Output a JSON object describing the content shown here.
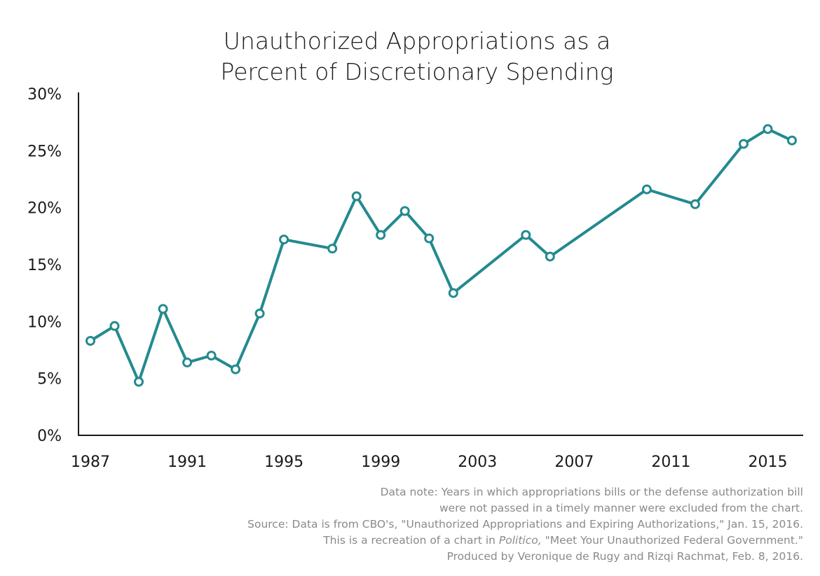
{
  "chart_data": {
    "type": "line",
    "title_lines": [
      "Unauthorized Appropriations as a",
      "Percent of Discretionary Spending"
    ],
    "ylim": [
      0,
      30
    ],
    "yticks": [
      0,
      5,
      10,
      15,
      20,
      25,
      30
    ],
    "ytick_labels": [
      "0%",
      "5%",
      "10%",
      "15%",
      "20%",
      "25%",
      "30%"
    ],
    "xlim": [
      1987,
      2016
    ],
    "xticks": [
      1987,
      1991,
      1995,
      1999,
      2003,
      2007,
      2011,
      2015
    ],
    "xtick_labels": [
      "1987",
      "1991",
      "1995",
      "1999",
      "2003",
      "2007",
      "2011",
      "2015"
    ],
    "grid": false,
    "color": "#238a8f",
    "points": [
      {
        "x": 1987,
        "y": 8.3
      },
      {
        "x": 1988,
        "y": 9.6
      },
      {
        "x": 1989,
        "y": 4.7
      },
      {
        "x": 1990,
        "y": 11.1
      },
      {
        "x": 1991,
        "y": 6.4
      },
      {
        "x": 1992,
        "y": 7.0
      },
      {
        "x": 1993,
        "y": 5.8
      },
      {
        "x": 1994,
        "y": 10.7
      },
      {
        "x": 1995,
        "y": 17.2
      },
      {
        "x": 1997,
        "y": 16.4
      },
      {
        "x": 1998,
        "y": 21.0
      },
      {
        "x": 1999,
        "y": 17.6
      },
      {
        "x": 2000,
        "y": 19.7
      },
      {
        "x": 2001,
        "y": 17.3
      },
      {
        "x": 2002,
        "y": 12.5
      },
      {
        "x": 2005,
        "y": 17.6
      },
      {
        "x": 2006,
        "y": 15.7
      },
      {
        "x": 2010,
        "y": 21.6
      },
      {
        "x": 2012,
        "y": 20.3
      },
      {
        "x": 2014,
        "y": 25.6
      },
      {
        "x": 2015,
        "y": 26.9
      },
      {
        "x": 2016,
        "y": 25.9
      }
    ]
  },
  "notes": {
    "line1": "Data note: Years in which appropriations bills or the defense authorization bill",
    "line2": "were not passed in a timely manner were excluded from the chart.",
    "line3": "Source: Data is from CBO's, \"Unauthorized Appropriations and Expiring Authorizations,\" Jan. 15, 2016.",
    "line4_prefix": "This is a recreation of a chart in ",
    "line4_italic": "Politico,",
    "line4_suffix": " \"Meet Your Unauthorized Federal Government.\"",
    "line5": "Produced by Veronique de Rugy and Rizqi Rachmat, Feb. 8, 2016."
  }
}
